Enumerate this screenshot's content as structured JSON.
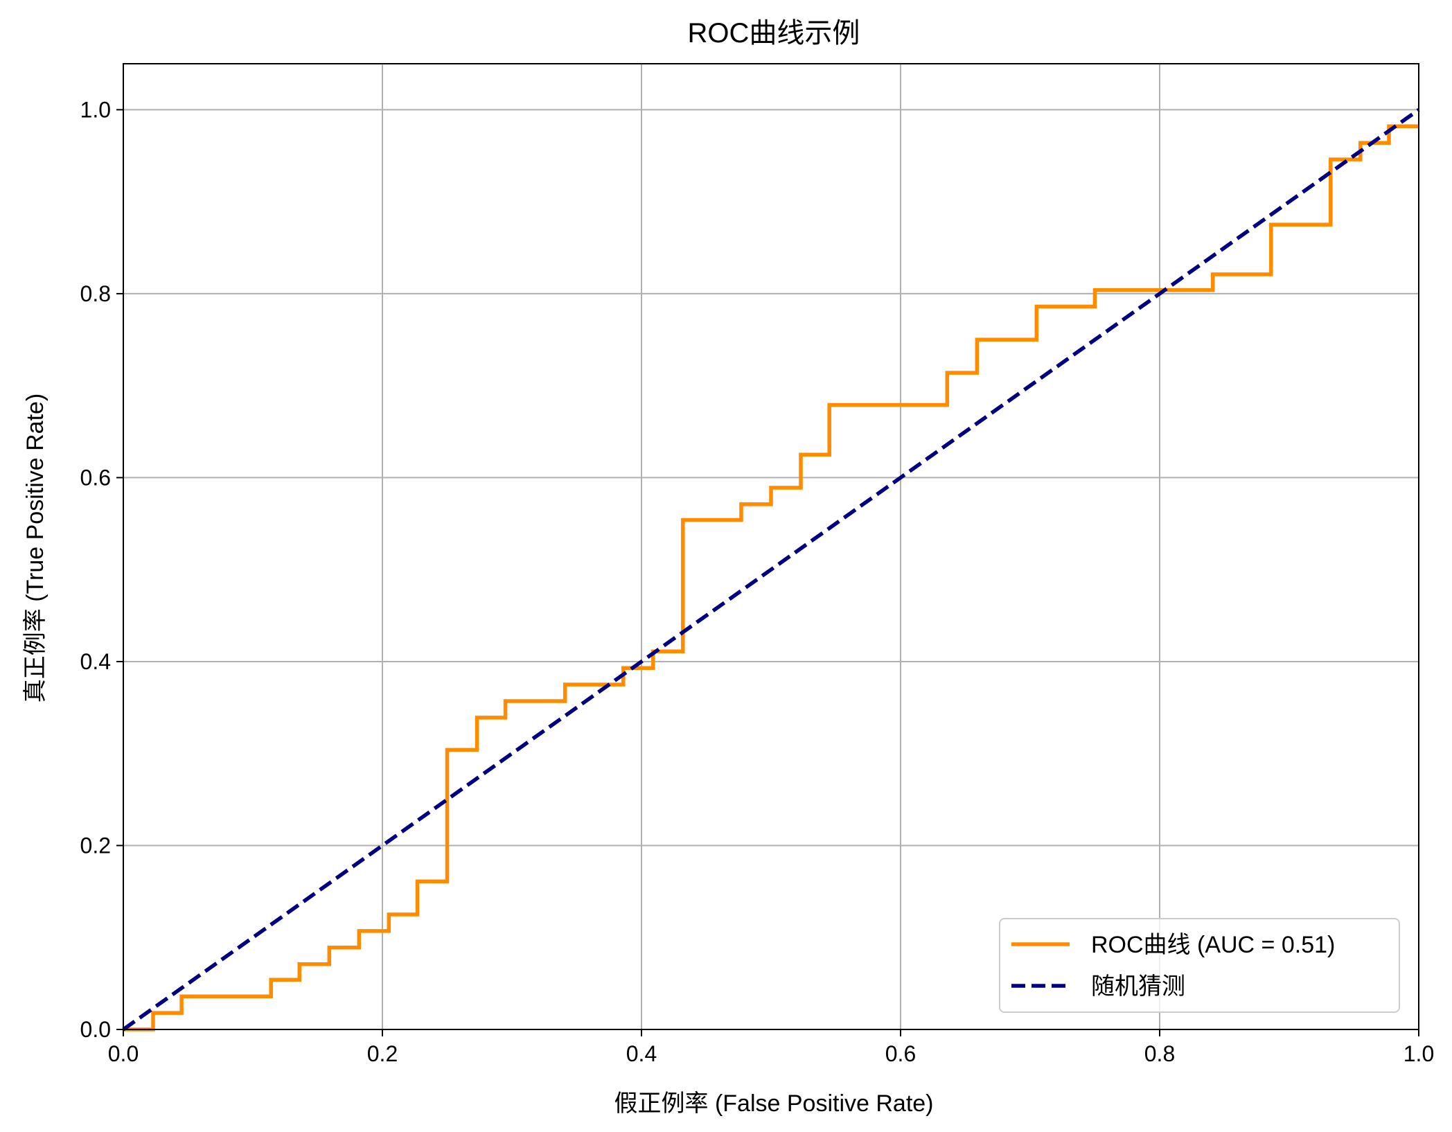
{
  "chart_data": {
    "type": "line",
    "title": "ROC曲线示例",
    "xlabel": "假正例率 (False Positive Rate)",
    "ylabel": "真正例率 (True Positive Rate)",
    "xlim": [
      0.0,
      1.0
    ],
    "ylim": [
      0.0,
      1.05
    ],
    "xticks": [
      0.0,
      0.2,
      0.4,
      0.6,
      0.8,
      1.0
    ],
    "yticks": [
      0.0,
      0.2,
      0.4,
      0.6,
      0.8,
      1.0
    ],
    "xtick_labels": [
      "0.0",
      "0.2",
      "0.4",
      "0.6",
      "0.8",
      "1.0"
    ],
    "ytick_labels": [
      "0.0",
      "0.2",
      "0.4",
      "0.6",
      "0.8",
      "1.0"
    ],
    "grid": true,
    "legend_position": "lower-right",
    "series": [
      {
        "name": "ROC曲线 (AUC = 0.51)",
        "style": "step",
        "color": "#ff8c00",
        "x": [
          0.0,
          0.023,
          0.023,
          0.045,
          0.045,
          0.114,
          0.114,
          0.136,
          0.136,
          0.159,
          0.159,
          0.182,
          0.182,
          0.205,
          0.205,
          0.227,
          0.227,
          0.25,
          0.25,
          0.273,
          0.273,
          0.295,
          0.295,
          0.341,
          0.341,
          0.386,
          0.386,
          0.409,
          0.409,
          0.432,
          0.432,
          0.477,
          0.477,
          0.5,
          0.5,
          0.523,
          0.523,
          0.545,
          0.545,
          0.636,
          0.636,
          0.659,
          0.659,
          0.705,
          0.705,
          0.75,
          0.75,
          0.841,
          0.841,
          0.886,
          0.886,
          0.932,
          0.932,
          0.955,
          0.955,
          0.977,
          0.977,
          1.0
        ],
        "y": [
          0.0,
          0.0,
          0.018,
          0.018,
          0.036,
          0.036,
          0.054,
          0.054,
          0.071,
          0.071,
          0.089,
          0.089,
          0.107,
          0.107,
          0.125,
          0.125,
          0.161,
          0.161,
          0.304,
          0.304,
          0.339,
          0.339,
          0.357,
          0.357,
          0.375,
          0.375,
          0.393,
          0.393,
          0.411,
          0.411,
          0.554,
          0.554,
          0.571,
          0.571,
          0.589,
          0.589,
          0.625,
          0.625,
          0.679,
          0.679,
          0.714,
          0.714,
          0.75,
          0.75,
          0.786,
          0.786,
          0.804,
          0.804,
          0.821,
          0.821,
          0.875,
          0.875,
          0.946,
          0.946,
          0.964,
          0.964,
          0.982,
          0.982
        ]
      },
      {
        "name": "随机猜测",
        "style": "dashed",
        "color": "#000080",
        "x": [
          0.0,
          1.0
        ],
        "y": [
          0.0,
          1.0
        ]
      }
    ]
  },
  "colors": {
    "roc": "#ff8c00",
    "random": "#000080",
    "grid": "#b0b0b0",
    "axes": "#000000"
  }
}
